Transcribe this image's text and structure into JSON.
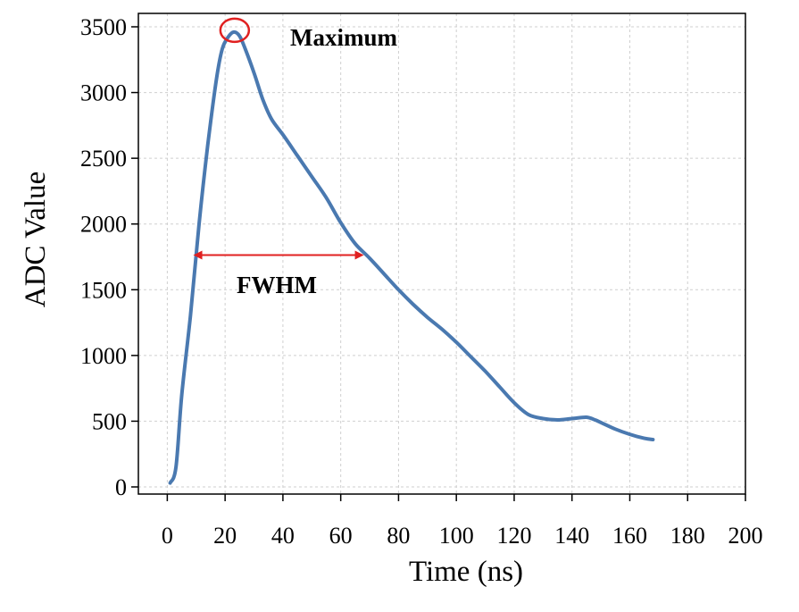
{
  "chart_data": {
    "type": "line",
    "xlabel": "Time (ns)",
    "ylabel": "ADC Value",
    "xlim": [
      -10,
      200
    ],
    "ylim": [
      0,
      3500
    ],
    "x_ticks": [
      "0",
      "20",
      "40",
      "60",
      "80",
      "100",
      "120",
      "140",
      "160",
      "180",
      "200"
    ],
    "y_ticks": [
      "0",
      "500",
      "1000",
      "1500",
      "2000",
      "2500",
      "3000",
      "3500"
    ],
    "grid": true,
    "line_color": "#4a79b0",
    "series": [
      {
        "x": [
          1,
          3,
          5,
          8,
          11,
          14,
          17,
          19,
          21,
          23,
          25,
          27,
          30,
          33,
          36,
          40,
          45,
          50,
          55,
          60,
          65,
          70,
          75,
          80,
          85,
          90,
          95,
          100,
          105,
          110,
          115,
          120,
          125,
          130,
          135,
          140,
          145,
          148,
          150,
          155,
          160,
          165,
          168
        ],
        "y": [
          30,
          150,
          700,
          1300,
          2000,
          2600,
          3100,
          3330,
          3420,
          3460,
          3430,
          3330,
          3150,
          2950,
          2800,
          2680,
          2520,
          2360,
          2200,
          2010,
          1850,
          1740,
          1620,
          1500,
          1390,
          1290,
          1200,
          1100,
          990,
          880,
          760,
          640,
          550,
          520,
          510,
          520,
          530,
          510,
          490,
          440,
          400,
          370,
          360
        ]
      }
    ],
    "annotations": {
      "maximum": {
        "label": "Maximum",
        "x": 23,
        "y": 3460,
        "color": "#e02020"
      },
      "fwhm": {
        "label": "FWHM",
        "x_start": 9,
        "x_end": 68,
        "y": 1750,
        "color": "#e02020"
      }
    }
  }
}
